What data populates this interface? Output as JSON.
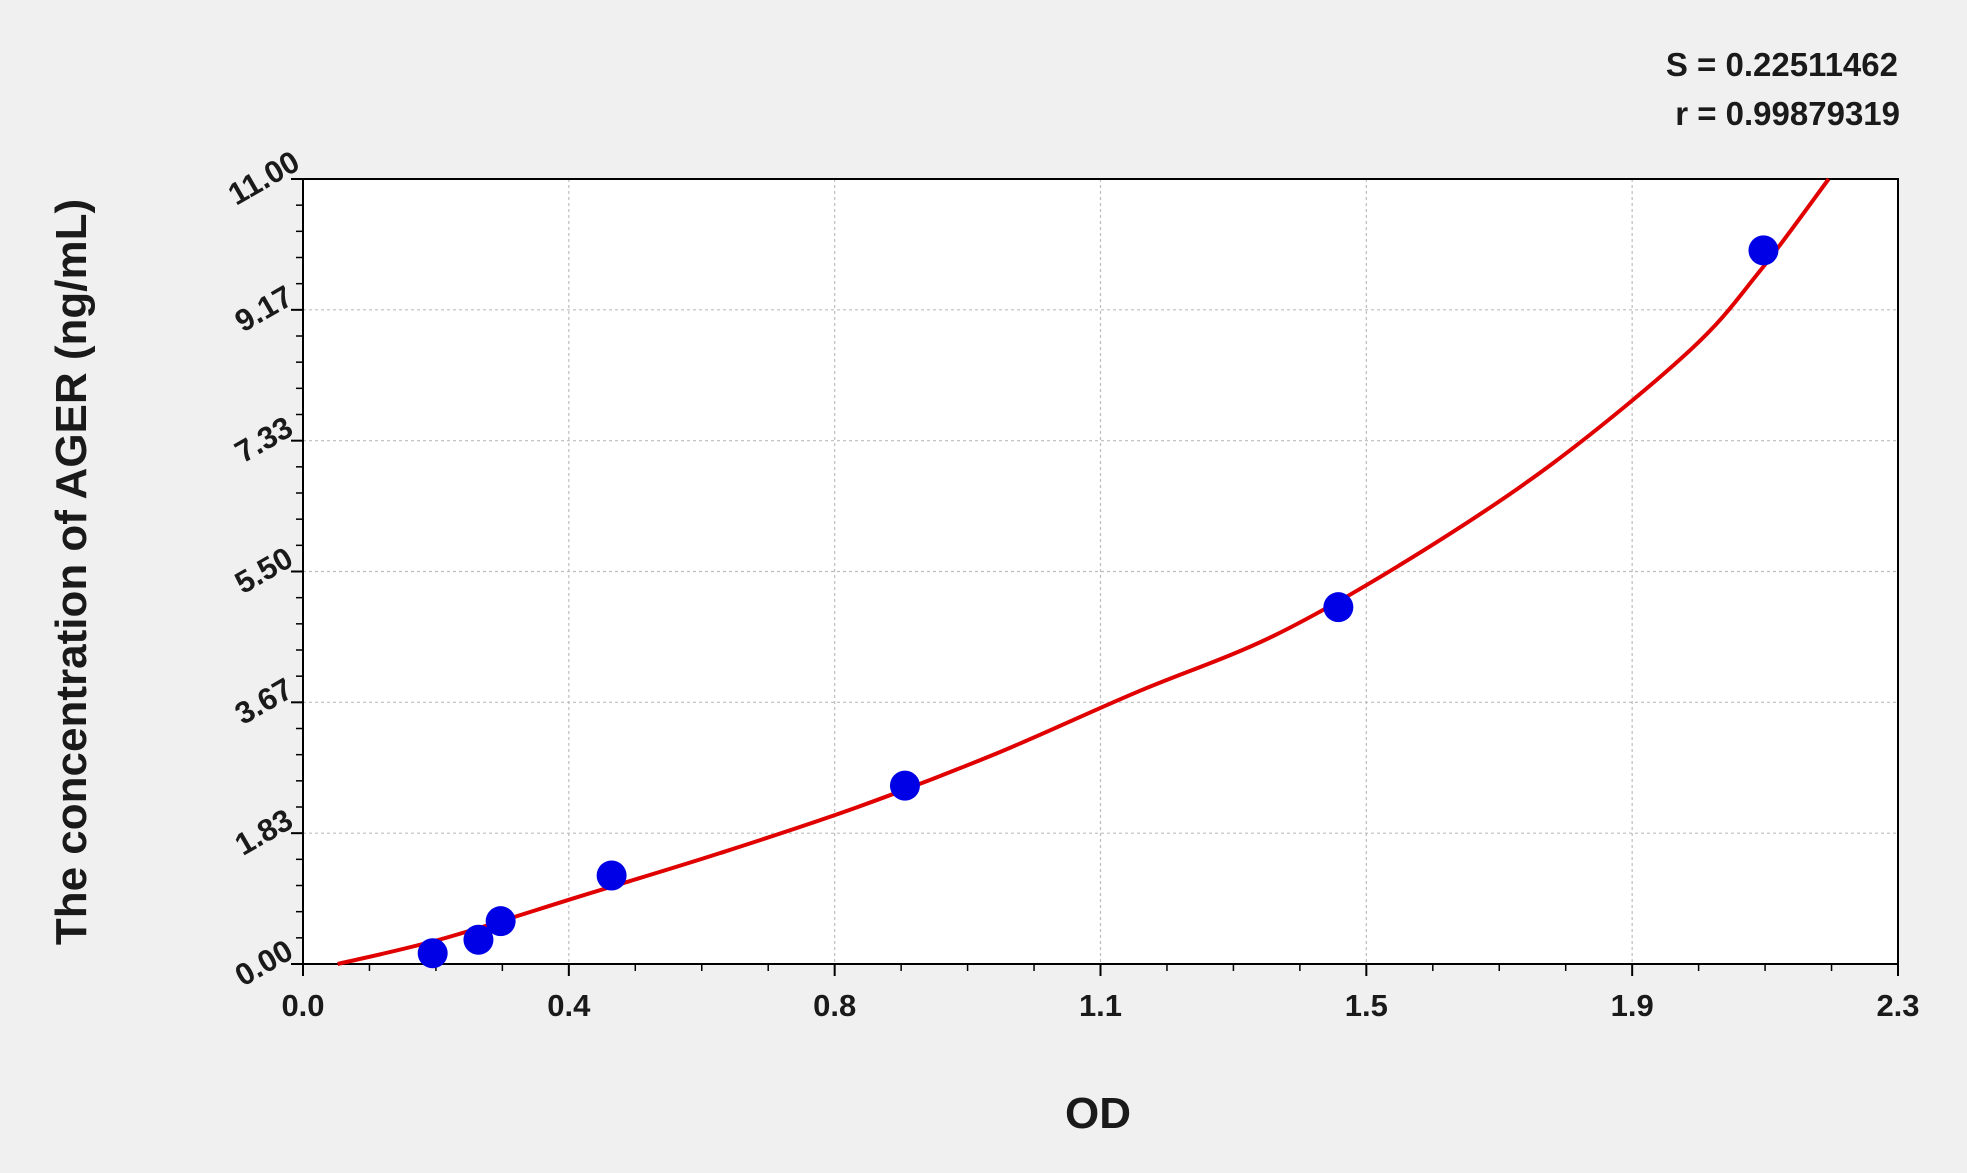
{
  "chart_data": {
    "type": "scatter",
    "xlabel": "OD",
    "ylabel": "The concentration of AGER (ng/mL)",
    "xlim": [
      0.0,
      2.3
    ],
    "ylim": [
      0.0,
      11.0
    ],
    "x_ticks": [
      "0.0",
      "0.4",
      "0.8",
      "1.1",
      "1.5",
      "1.9",
      "2.3"
    ],
    "y_ticks": [
      "0.00",
      "1.83",
      "3.67",
      "5.50",
      "7.33",
      "9.17",
      "11.00"
    ],
    "grid": true,
    "annotations": {
      "s_stat": "S = 0.22511462",
      "r_stat": "r = 0.99879319"
    },
    "series": [
      {
        "type": "scatter",
        "color": "#0000e6",
        "points": [
          {
            "x": 0.187,
            "y": 0.15
          },
          {
            "x": 0.253,
            "y": 0.34
          },
          {
            "x": 0.285,
            "y": 0.6
          },
          {
            "x": 0.445,
            "y": 1.24
          },
          {
            "x": 0.868,
            "y": 2.5
          },
          {
            "x": 1.493,
            "y": 5.0
          },
          {
            "x": 2.106,
            "y": 10.0
          }
        ]
      },
      {
        "type": "line",
        "color": "#e00000",
        "points": [
          {
            "x": 0.05,
            "y": 0.0
          },
          {
            "x": 0.2,
            "y": 0.35
          },
          {
            "x": 0.4,
            "y": 0.95
          },
          {
            "x": 0.6,
            "y": 1.55
          },
          {
            "x": 0.8,
            "y": 2.2
          },
          {
            "x": 1.0,
            "y": 2.95
          },
          {
            "x": 1.2,
            "y": 3.8
          },
          {
            "x": 1.4,
            "y": 4.6
          },
          {
            "x": 1.6,
            "y": 5.7
          },
          {
            "x": 1.8,
            "y": 7.0
          },
          {
            "x": 2.0,
            "y": 8.6
          },
          {
            "x": 2.1,
            "y": 9.7
          },
          {
            "x": 2.2,
            "y": 11.0
          }
        ]
      }
    ]
  }
}
